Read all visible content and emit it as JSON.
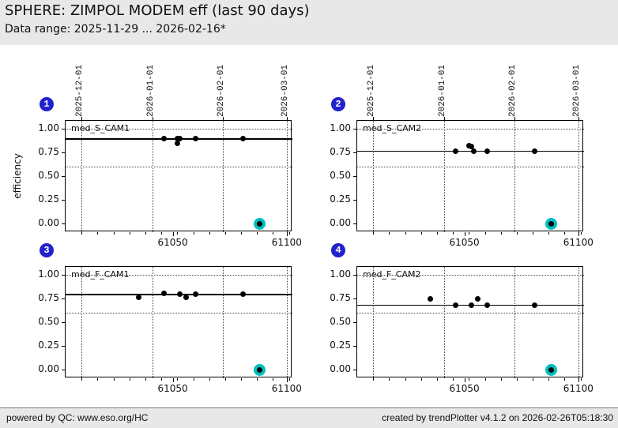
{
  "header": {
    "title": "SPHERE: ZIMPOL MODEM eff (last 90 days)",
    "subtitle": "Data range: 2025-11-29 ... 2026-02-16*"
  },
  "footer": {
    "left": "powered by QC: www.eso.org/HC",
    "right": "created by trendPlotter v4.1.2 on 2026-02-26T05:18:30"
  },
  "colors": {
    "badge_blue": "#2222cc",
    "highlight_cyan": "#00bfbf",
    "point_black": "#000000",
    "band_gray": "#e8e8e8"
  },
  "chart_data": {
    "type": "scatter",
    "ylabel": "efficiency",
    "xlim": [
      61003,
      61102.5
    ],
    "ylim": [
      -0.09,
      1.08
    ],
    "x_major_ticks": [
      61050,
      61100
    ],
    "x_minor_ticks": {
      "start": 61010,
      "step": 7,
      "end": 61101
    },
    "y_ticks": [
      1.0,
      0.75,
      0.5,
      0.25,
      0.0
    ],
    "date_gridlines": [
      {
        "mjd": 61010,
        "label": "2025-12-01"
      },
      {
        "mjd": 61041,
        "label": "2026-01-01"
      },
      {
        "mjd": 61072,
        "label": "2026-02-01"
      },
      {
        "mjd": 61100,
        "label": "2026-03-01"
      }
    ],
    "threshold_lines": [
      1.0,
      0.6
    ],
    "subplots": [
      {
        "index": "1",
        "label": "med_S_CAM1",
        "median": 0.89,
        "points": [
          [
            61046,
            0.89
          ],
          [
            61052,
            0.89
          ],
          [
            61053,
            0.89
          ],
          [
            61052,
            0.84
          ],
          [
            61060,
            0.89
          ],
          [
            61081,
            0.89
          ]
        ],
        "last_point": [
          61088,
          0.0
        ]
      },
      {
        "index": "2",
        "label": "med_S_CAM2",
        "median": 0.76,
        "points": [
          [
            61046,
            0.76
          ],
          [
            61052,
            0.82
          ],
          [
            61053,
            0.81
          ],
          [
            61054,
            0.76
          ],
          [
            61060,
            0.76
          ],
          [
            61081,
            0.76
          ]
        ],
        "last_point": [
          61088,
          0.0
        ]
      },
      {
        "index": "3",
        "label": "med_F_CAM1",
        "median": 0.79,
        "points": [
          [
            61035,
            0.76
          ],
          [
            61046,
            0.8
          ],
          [
            61053,
            0.79
          ],
          [
            61056,
            0.76
          ],
          [
            61060,
            0.79
          ],
          [
            61081,
            0.79
          ]
        ],
        "last_point": [
          61088,
          0.0
        ]
      },
      {
        "index": "4",
        "label": "med_F_CAM2",
        "median": 0.68,
        "points": [
          [
            61035,
            0.74
          ],
          [
            61046,
            0.68
          ],
          [
            61053,
            0.68
          ],
          [
            61056,
            0.74
          ],
          [
            61060,
            0.68
          ],
          [
            61081,
            0.68
          ]
        ],
        "last_point": [
          61088,
          0.0
        ]
      }
    ]
  }
}
